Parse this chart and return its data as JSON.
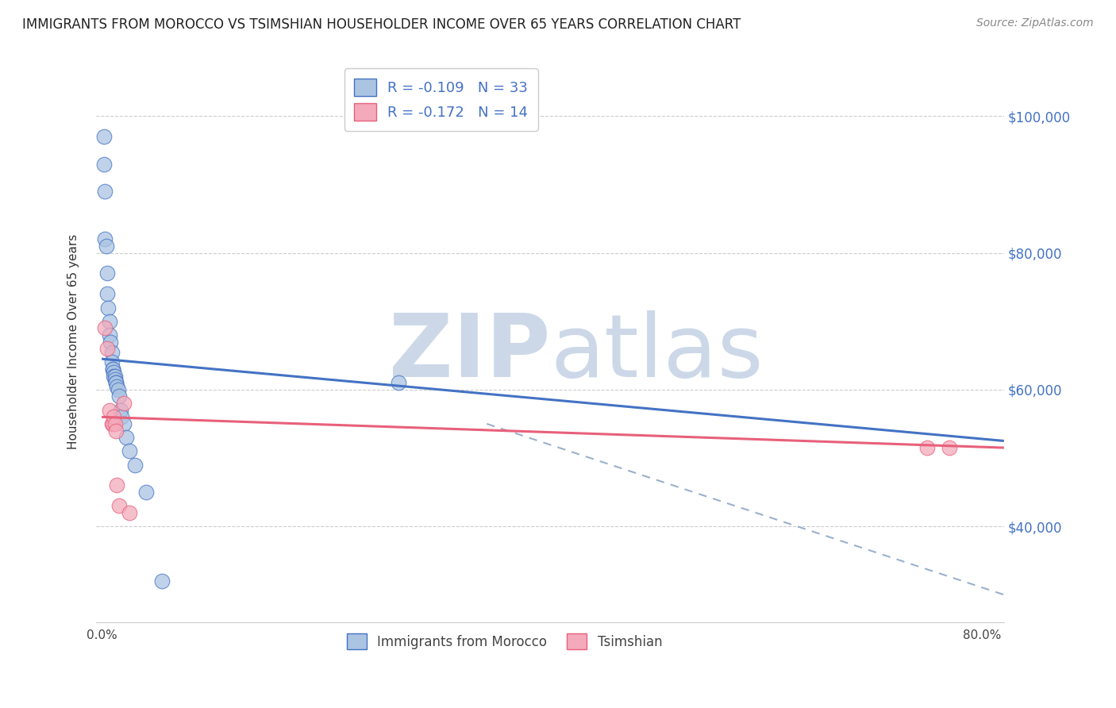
{
  "title": "IMMIGRANTS FROM MOROCCO VS TSIMSHIAN HOUSEHOLDER INCOME OVER 65 YEARS CORRELATION CHART",
  "source": "Source: ZipAtlas.com",
  "ylabel": "Householder Income Over 65 years",
  "xlabel_ticks": [
    "0.0%",
    "",
    "",
    "",
    "80.0%"
  ],
  "xlabel_vals": [
    0.0,
    0.2,
    0.4,
    0.6,
    0.8
  ],
  "ylabel_ticks": [
    "$40,000",
    "$60,000",
    "$80,000",
    "$100,000"
  ],
  "ylabel_vals": [
    40000,
    60000,
    80000,
    100000
  ],
  "xlim": [
    -0.005,
    0.82
  ],
  "ylim": [
    26000,
    108000
  ],
  "blue_r": "-0.109",
  "blue_n": "33",
  "pink_r": "-0.172",
  "pink_n": "14",
  "blue_color": "#aac4e2",
  "pink_color": "#f4aabb",
  "blue_line_color": "#4472c4",
  "pink_line_color": "#e8607a",
  "dash_line_color": "#9ab0cc",
  "watermark_zip": "ZIP",
  "watermark_atlas": "atlas",
  "watermark_color": "#ccd8e8",
  "blue_dots_x": [
    0.002,
    0.002,
    0.003,
    0.003,
    0.004,
    0.005,
    0.005,
    0.006,
    0.007,
    0.007,
    0.008,
    0.009,
    0.009,
    0.01,
    0.01,
    0.011,
    0.011,
    0.012,
    0.012,
    0.013,
    0.013,
    0.014,
    0.015,
    0.016,
    0.017,
    0.018,
    0.02,
    0.022,
    0.025,
    0.03,
    0.04,
    0.055,
    0.27
  ],
  "blue_dots_y": [
    97000,
    93000,
    89000,
    82000,
    81000,
    77000,
    74000,
    72000,
    70000,
    68000,
    67000,
    65500,
    64000,
    63000,
    63000,
    62500,
    62000,
    62000,
    61500,
    61000,
    61000,
    60500,
    60000,
    59000,
    57000,
    56000,
    55000,
    53000,
    51000,
    49000,
    45000,
    32000,
    61000
  ],
  "pink_dots_x": [
    0.003,
    0.005,
    0.007,
    0.009,
    0.01,
    0.011,
    0.012,
    0.013,
    0.014,
    0.016,
    0.02,
    0.025,
    0.75,
    0.77
  ],
  "pink_dots_y": [
    69000,
    66000,
    57000,
    55000,
    55000,
    56000,
    55000,
    54000,
    46000,
    43000,
    58000,
    42000,
    51500,
    51500
  ],
  "blue_line_x0": 0.0,
  "blue_line_x1": 0.82,
  "blue_line_y0": 64500,
  "blue_line_y1": 52500,
  "pink_line_x0": 0.0,
  "pink_line_x1": 0.82,
  "pink_line_y0": 56000,
  "pink_line_y1": 51500,
  "dash_line_x0": 0.35,
  "dash_line_x1": 0.82,
  "dash_line_y0": 55000,
  "dash_line_y1": 30000
}
